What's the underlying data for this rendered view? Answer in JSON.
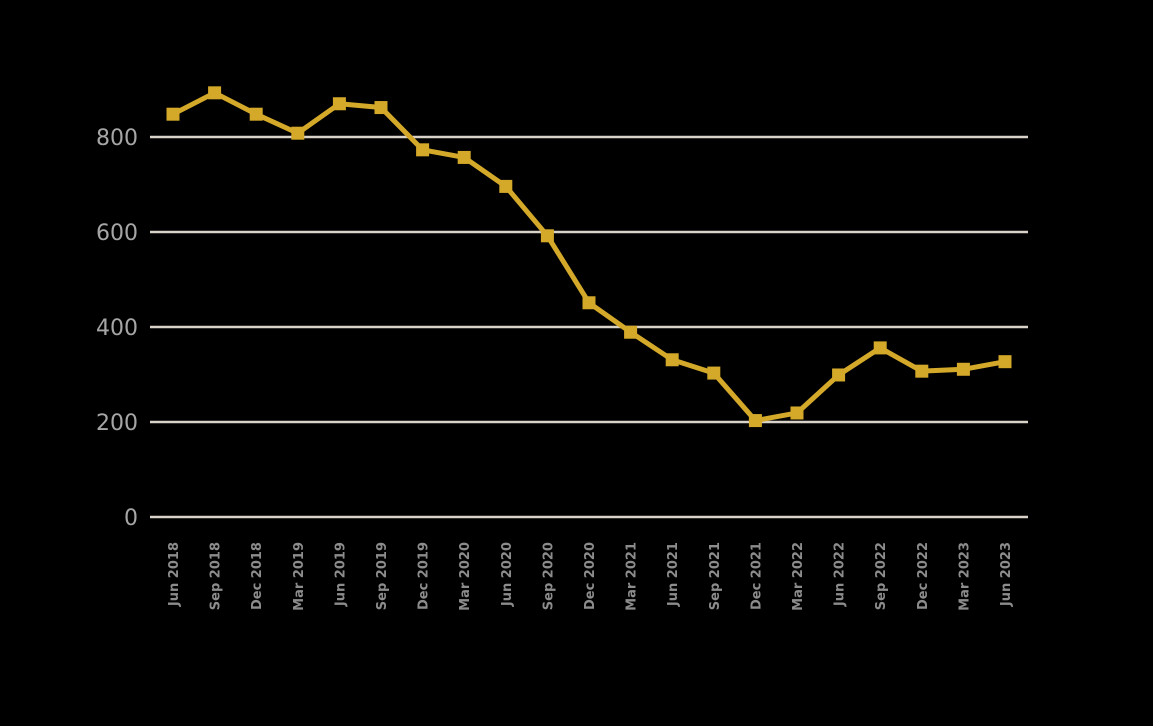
{
  "chart_data": {
    "type": "line",
    "title": "",
    "xlabel": "",
    "ylabel": "",
    "categories": [
      "Jun 2018",
      "Sep 2018",
      "Dec 2018",
      "Mar 2019",
      "Jun 2019",
      "Sep 2019",
      "Dec 2019",
      "Mar 2020",
      "Jun 2020",
      "Sep 2020",
      "Dec 2020",
      "Mar 2021",
      "Jun 2021",
      "Sep 2021",
      "Dec 2021",
      "Mar 2022",
      "Jun 2022",
      "Sep 2022",
      "Dec 2022",
      "Mar 2023",
      "Jun 2023"
    ],
    "series": [
      {
        "values": [
          848,
          893,
          848,
          808,
          870,
          862,
          773,
          757,
          696,
          592,
          451,
          389,
          331,
          303,
          203,
          219,
          299,
          356,
          307,
          311,
          327
        ],
        "color": "#d4a92a",
        "marker": "square"
      }
    ],
    "ylim": [
      0,
      900
    ],
    "yticks": [
      0,
      200,
      400,
      600,
      800
    ],
    "ytick_labels": [
      "0",
      "200",
      "400",
      "600",
      "800"
    ],
    "grid": true,
    "legend": "none",
    "colors": {
      "background": "#000000",
      "grid": "#d9d2c9",
      "line": "#d4a92a",
      "ytick_text": "#a6a6a6",
      "xtick_text": "#8c8c8c"
    }
  }
}
